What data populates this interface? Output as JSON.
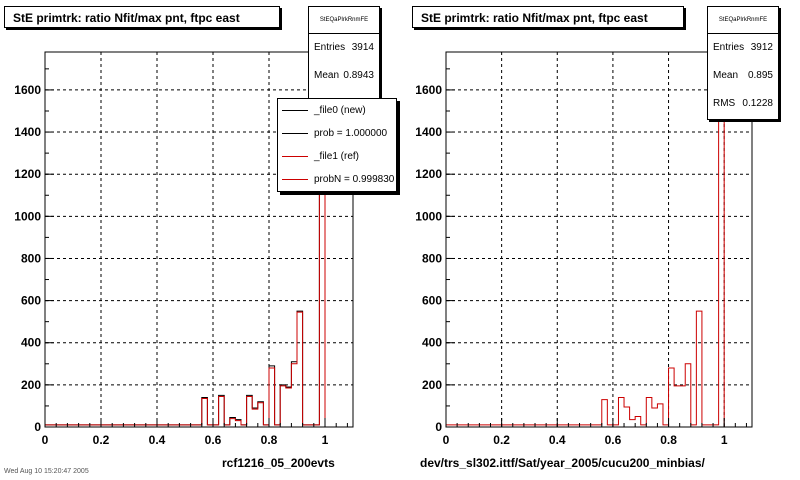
{
  "footer_text": "Wed Aug 10 15:20:47 2005",
  "panels": [
    {
      "title": "StE primtrk: ratio Nfit/max pnt, ftpc east",
      "stats": {
        "name": "StEQaPlrkRnmFE",
        "entries_label": "Entries",
        "entries": "3914",
        "mean_label": "Mean",
        "mean": "0.8943"
      },
      "legend": [
        {
          "label": "_file0 (new)",
          "color": "#000000"
        },
        {
          "label": "prob = 1.000000",
          "color": "#000000"
        },
        {
          "label": "_file1 (ref)",
          "color": "#cc0000"
        },
        {
          "label": "probN = 0.999830",
          "color": "#cc0000"
        }
      ],
      "xlabel": "rcf1216_05_200evts"
    },
    {
      "title": "StE primtrk: ratio Nfit/max pnt, ftpc east",
      "stats": {
        "name": "StEQaPlrkRnmFE",
        "entries_label": "Entries",
        "entries": "3912",
        "mean_label": "Mean",
        "mean": "0.895",
        "rms_label": "RMS",
        "rms": "0.1228"
      },
      "xlabel": "dev/trs_sl302.ittf/Sat/year_2005/cucu200_minbias/"
    }
  ],
  "chart_data": [
    {
      "type": "bar",
      "xlim": [
        0,
        1.1
      ],
      "ylim": [
        0,
        1780
      ],
      "x_ticks": [
        "0",
        "0.2",
        "0.4",
        "0.6",
        "0.8",
        "1"
      ],
      "y_ticks": [
        "0",
        "200",
        "400",
        "600",
        "800",
        "1000",
        "1200",
        "1400",
        "1600"
      ],
      "grid": true,
      "bin_width": 0.02,
      "series": [
        {
          "name": "_file0 (new)",
          "color": "#000000",
          "bins": [
            [
              0.56,
              140
            ],
            [
              0.58,
              10
            ],
            [
              0.62,
              150
            ],
            [
              0.64,
              10
            ],
            [
              0.66,
              45
            ],
            [
              0.68,
              35
            ],
            [
              0.72,
              150
            ],
            [
              0.74,
              90
            ],
            [
              0.76,
              120
            ],
            [
              0.8,
              290
            ],
            [
              0.82,
              10
            ],
            [
              0.84,
              200
            ],
            [
              0.86,
              190
            ],
            [
              0.88,
              310
            ],
            [
              0.9,
              550
            ],
            [
              0.98,
              1700
            ]
          ]
        },
        {
          "name": "_file1 (ref)",
          "color": "#cc0000",
          "bins": [
            [
              0.56,
              135
            ],
            [
              0.58,
              10
            ],
            [
              0.62,
              145
            ],
            [
              0.64,
              10
            ],
            [
              0.66,
              40
            ],
            [
              0.68,
              30
            ],
            [
              0.72,
              145
            ],
            [
              0.74,
              85
            ],
            [
              0.76,
              115
            ],
            [
              0.8,
              280
            ],
            [
              0.82,
              10
            ],
            [
              0.84,
              195
            ],
            [
              0.86,
              185
            ],
            [
              0.88,
              300
            ],
            [
              0.9,
              545
            ],
            [
              0.98,
              1690
            ]
          ]
        }
      ],
      "baseline": 0.1
    },
    {
      "type": "bar",
      "xlim": [
        0,
        1.1
      ],
      "ylim": [
        0,
        1780
      ],
      "x_ticks": [
        "0",
        "0.2",
        "0.4",
        "0.6",
        "0.8",
        "1"
      ],
      "y_ticks": [
        "0",
        "200",
        "400",
        "600",
        "800",
        "1000",
        "1200",
        "1400",
        "1600"
      ],
      "grid": true,
      "bin_width": 0.02,
      "series": [
        {
          "name": "_file1 (ref)",
          "color": "#cc0000",
          "bins": [
            [
              0.56,
              130
            ],
            [
              0.58,
              10
            ],
            [
              0.62,
              140
            ],
            [
              0.64,
              95
            ],
            [
              0.66,
              35
            ],
            [
              0.68,
              50
            ],
            [
              0.72,
              140
            ],
            [
              0.74,
              90
            ],
            [
              0.76,
              110
            ],
            [
              0.8,
              280
            ],
            [
              0.82,
              195
            ],
            [
              0.84,
              195
            ],
            [
              0.86,
              300
            ],
            [
              0.9,
              550
            ],
            [
              0.98,
              1780
            ]
          ]
        }
      ],
      "baseline": 0.1
    }
  ]
}
